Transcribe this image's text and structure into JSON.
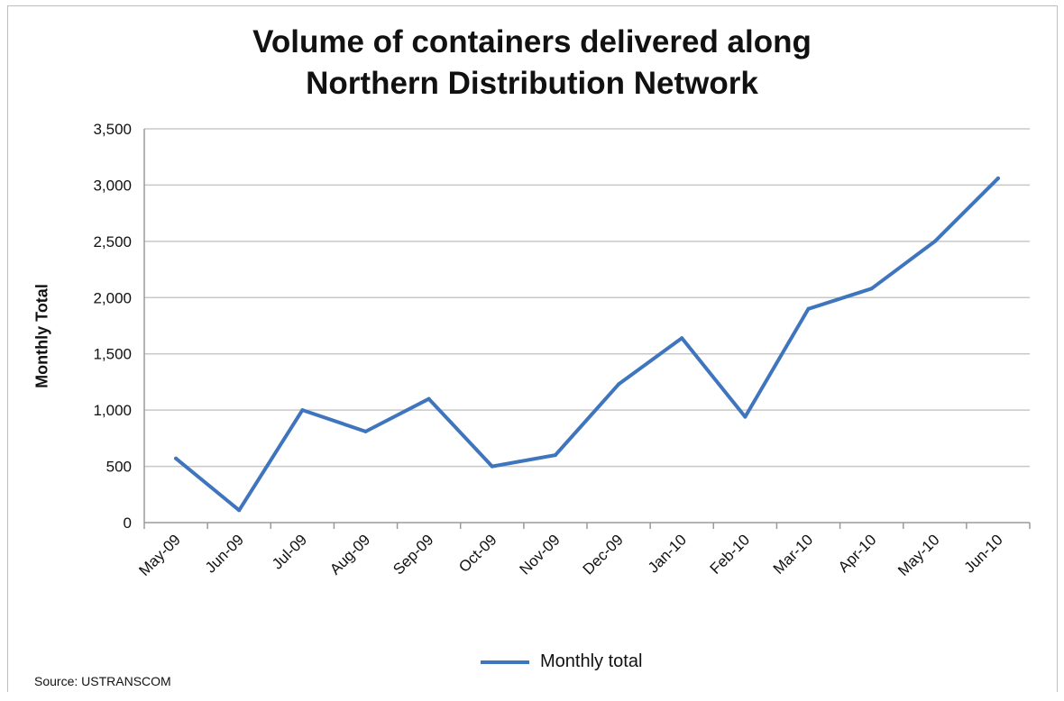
{
  "chart_data": {
    "type": "line",
    "title_lines": [
      "Volume of containers delivered along",
      "Northern Distribution Network"
    ],
    "ylabel": "Monthly Total",
    "xlabel": "",
    "categories": [
      "May-09",
      "Jun-09",
      "Jul-09",
      "Aug-09",
      "Sep-09",
      "Oct-09",
      "Nov-09",
      "Dec-09",
      "Jan-10",
      "Feb-10",
      "Mar-10",
      "Apr-10",
      "May-10",
      "Jun-10"
    ],
    "series": [
      {
        "name": "Monthly total",
        "color": "#3f75bd",
        "values": [
          570,
          110,
          1000,
          810,
          1100,
          500,
          600,
          1230,
          1640,
          940,
          1900,
          2080,
          2500,
          3060
        ]
      }
    ],
    "ylim": [
      0,
      3500
    ],
    "yticks": [
      0,
      500,
      1000,
      1500,
      2000,
      2500,
      3000,
      3500
    ],
    "ytick_labels": [
      "0",
      "500",
      "1,000",
      "1,500",
      "2,000",
      "2,500",
      "3,000",
      "3,500"
    ],
    "grid": true,
    "legend_position": "bottom-center"
  },
  "source": "Source: USTRANSCOM"
}
